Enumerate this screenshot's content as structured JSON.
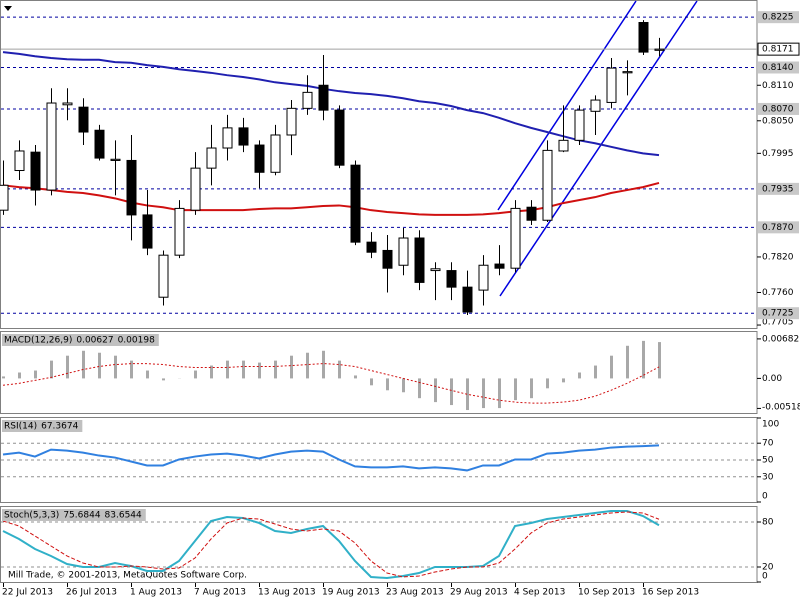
{
  "chart_data": {
    "type": "candlestick",
    "categories": [
      "22 Jul 2013",
      null,
      null,
      null,
      "26 Jul 2013",
      null,
      null,
      null,
      "1 Aug 2013",
      null,
      null,
      null,
      "7 Aug 2013",
      null,
      null,
      null,
      "13 Aug 2013",
      null,
      null,
      null,
      "19 Aug 2013",
      null,
      null,
      null,
      "23 Aug 2013",
      null,
      null,
      null,
      "29 Aug 2013",
      null,
      null,
      null,
      "4 Sep 2013",
      null,
      null,
      null,
      "10 Sep 2013",
      null,
      null,
      null,
      "16 Sep 2013",
      null
    ],
    "open": [
      0.7899,
      0.7966,
      0.7997,
      0.7933,
      0.8077,
      0.8073,
      0.8034,
      0.7983,
      0.7983,
      0.7891,
      0.7752,
      0.7823,
      0.7899,
      0.797,
      0.8004,
      0.8038,
      0.8009,
      0.7963,
      0.8026,
      0.8071,
      0.811,
      0.8068,
      0.7975,
      0.7845,
      0.7831,
      0.7806,
      0.7852,
      0.7797,
      0.7797,
      0.7769,
      0.7764,
      0.7808,
      0.7801,
      0.7904,
      0.7882,
      0.7999,
      0.8017,
      0.8066,
      0.8081,
      0.8131,
      0.8216,
      0.8169
    ],
    "high": [
      0.7983,
      0.8017,
      0.8009,
      0.8105,
      0.8105,
      0.8088,
      0.8043,
      0.8017,
      0.8026,
      0.7933,
      0.7831,
      0.7916,
      0.7997,
      0.8043,
      0.806,
      0.8055,
      0.8017,
      0.8043,
      0.8085,
      0.8127,
      0.8161,
      0.8076,
      0.7983,
      0.7862,
      0.7857,
      0.7869,
      0.7865,
      0.7811,
      0.7811,
      0.7797,
      0.7823,
      0.784,
      0.7916,
      0.7916,
      0.8017,
      0.8076,
      0.8076,
      0.8093,
      0.8156,
      0.8152,
      0.822,
      0.819
    ],
    "low": [
      0.7891,
      0.795,
      0.7907,
      0.7924,
      0.8051,
      0.8009,
      0.7983,
      0.7924,
      0.7848,
      0.7823,
      0.7738,
      0.7818,
      0.7891,
      0.7941,
      0.7983,
      0.7997,
      0.7936,
      0.7958,
      0.7992,
      0.806,
      0.8051,
      0.797,
      0.784,
      0.7818,
      0.776,
      0.7789,
      0.7764,
      0.7747,
      0.7747,
      0.7722,
      0.7738,
      0.7789,
      0.7794,
      0.7874,
      0.7879,
      0.7997,
      0.8009,
      0.8026,
      0.8071,
      0.8093,
      0.8161,
      0.8159
    ],
    "close": [
      0.7941,
      0.7999,
      0.7933,
      0.808,
      0.808,
      0.8031,
      0.7987,
      0.7985,
      0.7891,
      0.7835,
      0.7823,
      0.7902,
      0.797,
      0.8004,
      0.8038,
      0.8009,
      0.7963,
      0.8026,
      0.8071,
      0.8098,
      0.8068,
      0.7975,
      0.7845,
      0.7828,
      0.7801,
      0.7852,
      0.7777,
      0.78,
      0.7769,
      0.7727,
      0.7806,
      0.7801,
      0.7902,
      0.7882,
      0.8,
      0.8017,
      0.8068,
      0.8085,
      0.8139,
      0.8133,
      0.8166,
      0.8171
    ],
    "overlays": [
      {
        "color": "#2020b0",
        "values": [
          0.8166,
          0.8163,
          0.8159,
          0.8156,
          0.8154,
          0.8153,
          0.8153,
          0.8149,
          0.8148,
          0.8144,
          0.8141,
          0.8137,
          0.8134,
          0.8131,
          0.8127,
          0.8124,
          0.812,
          0.8115,
          0.8112,
          0.8109,
          0.8104,
          0.81,
          0.8097,
          0.8095,
          0.8092,
          0.8088,
          0.8083,
          0.808,
          0.8075,
          0.8068,
          0.8063,
          0.8055,
          0.8046,
          0.8038,
          0.8031,
          0.8024,
          0.8017,
          0.8012,
          0.8006,
          0.8,
          0.7995,
          0.7992
        ]
      },
      {
        "color": "#d01010",
        "values": [
          0.7941,
          0.7938,
          0.7936,
          0.7933,
          0.793,
          0.7928,
          0.7924,
          0.7919,
          0.7912,
          0.7907,
          0.7904,
          0.7899,
          0.7899,
          0.7899,
          0.7899,
          0.7899,
          0.7901,
          0.7902,
          0.7902,
          0.7904,
          0.7906,
          0.7907,
          0.7904,
          0.7899,
          0.7896,
          0.7894,
          0.7892,
          0.7891,
          0.7891,
          0.7891,
          0.7892,
          0.7894,
          0.7897,
          0.7899,
          0.7904,
          0.7911,
          0.7916,
          0.7921,
          0.7928,
          0.7933,
          0.7938,
          0.7945
        ]
      }
    ],
    "ylim": [
      0.77,
      0.8254
    ],
    "yticks": [
      {
        "value": 0.811,
        "label": "0.8110"
      },
      {
        "value": 0.805,
        "label": "0.8050"
      },
      0.7995,
      {
        "value": 0.782,
        "label": "0.7820"
      },
      {
        "value": 0.776,
        "label": "0.7760"
      },
      0.7705
    ],
    "levels": [
      0.8225,
      {
        "value": 0.814,
        "label": "0.8140"
      },
      {
        "value": 0.807,
        "label": "0.8070"
      },
      0.7935,
      {
        "value": 0.787,
        "label": "0.7870"
      },
      0.7725
    ],
    "level_color": "#0000a0",
    "last_price": 0.8171,
    "indicators": [
      {
        "type": "macd",
        "name": "MACD(12,26,9)",
        "ylim": [
          -0.00597,
          0.00801
        ],
        "yticks": [
          0.00682,
          {
            "value": 0,
            "label": "0.00"
          },
          -0.00518
        ],
        "histogram": {
          "color": "#a8a8a8",
          "values": [
            0.00034,
            0.00102,
            0.00136,
            0.00307,
            0.00392,
            0.00477,
            0.00443,
            0.00392,
            0.00307,
            0.00136,
            -0.00034,
            3e-05,
            0.00136,
            0.00222,
            0.00307,
            0.00307,
            0.00273,
            0.00307,
            0.00392,
            0.00443,
            0.00477,
            0.00307,
            0.00051,
            -0.00119,
            -0.00205,
            -0.00239,
            -0.00341,
            -0.00409,
            -0.0046,
            -0.00546,
            -0.00512,
            -0.00512,
            -0.00375,
            -0.00341,
            -0.00171,
            -0.00068,
            0.00102,
            0.00222,
            0.00392,
            0.00563,
            0.00648,
            0.00627
          ]
        },
        "signal": {
          "color": "#d01010",
          "style": "dotted",
          "values": [
            -0.00119,
            -0.00085,
            -0.00034,
            0.00017,
            0.00085,
            0.00153,
            0.00205,
            0.00239,
            0.00256,
            0.00256,
            0.00239,
            0.00205,
            0.00188,
            0.00188,
            0.00188,
            0.00205,
            0.00205,
            0.00205,
            0.00222,
            0.00239,
            0.00256,
            0.00239,
            0.00205,
            0.00136,
            0.00068,
            0,
            -0.00068,
            -0.00136,
            -0.00205,
            -0.00273,
            -0.00324,
            -0.00375,
            -0.00409,
            -0.00426,
            -0.00426,
            -0.00409,
            -0.00375,
            -0.00307,
            -0.00205,
            -0.00085,
            0.00051,
            0.00198
          ]
        }
      },
      {
        "type": "line",
        "name": "RSI(14)",
        "ylim": [
          0,
          100
        ],
        "yticks": [
          100,
          70,
          50,
          30,
          0
        ],
        "levels": [
          70,
          50,
          30
        ],
        "series": [
          {
            "color": "#3080e0",
            "style": "solid",
            "values": [
              56.5,
              58.8,
              54.1,
              62.4,
              61.2,
              58.8,
              55.3,
              52.9,
              48.2,
              43.5,
              43.5,
              50.6,
              54.1,
              56.5,
              57.6,
              55.3,
              51.8,
              56.5,
              60.0,
              61.2,
              60.0,
              50.6,
              42.4,
              41.2,
              41.2,
              42.4,
              40.0,
              41.2,
              40.0,
              37.6,
              43.5,
              43.5,
              50.6,
              50.6,
              57.6,
              58.8,
              61.2,
              62.4,
              64.8,
              65.9,
              66.5,
              67.3674
            ]
          }
        ]
      },
      {
        "type": "line",
        "name": "Stoch(5,3,3)",
        "ylim": [
          0,
          100
        ],
        "yticks": [
          80,
          20,
          0
        ],
        "levels": [
          80,
          20
        ],
        "series": [
          {
            "color": "#30b0c8",
            "style": "solid",
            "values": [
              68.0,
              57.3,
              44.0,
              34.7,
              24.0,
              20.0,
              20.0,
              25.3,
              21.3,
              14.7,
              14.7,
              28.0,
              54.7,
              81.3,
              86.7,
              85.3,
              78.7,
              68.0,
              65.3,
              70.7,
              74.7,
              54.7,
              28.0,
              6.7,
              5.3,
              8.0,
              12.0,
              20.0,
              20.0,
              20.0,
              21.3,
              34.7,
              74.7,
              78.7,
              84.0,
              86.7,
              89.3,
              92.0,
              94.7,
              94.7,
              88.0,
              75.6844
            ]
          },
          {
            "color": "#d01010",
            "style": "dashed",
            "values": [
              81.3,
              74.7,
              61.3,
              48.0,
              34.7,
              25.3,
              20.0,
              20.0,
              21.3,
              20.0,
              17.3,
              18.7,
              32.0,
              57.3,
              78.7,
              85.3,
              84.0,
              77.3,
              70.7,
              68.0,
              70.7,
              68.0,
              52.0,
              28.0,
              12.0,
              6.7,
              8.0,
              13.3,
              17.3,
              20.0,
              20.0,
              25.3,
              44.0,
              65.3,
              78.7,
              84.0,
              86.7,
              89.3,
              92.0,
              93.3,
              92.0,
              83.6544
            ]
          }
        ]
      }
    ],
    "footer": "Mill Trade, © 2001-2013, MetaQuotes Software Corp."
  }
}
